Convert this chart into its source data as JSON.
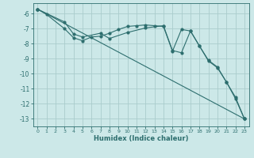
{
  "xlabel": "Humidex (Indice chaleur)",
  "bg_color": "#cce8e8",
  "grid_color": "#aacccc",
  "line_color": "#2d6e6e",
  "xlim": [
    -0.5,
    23.5
  ],
  "ylim": [
    -13.5,
    -5.3
  ],
  "yticks": [
    -13,
    -12,
    -11,
    -10,
    -9,
    -8,
    -7,
    -6
  ],
  "xticks": [
    0,
    1,
    2,
    3,
    4,
    5,
    6,
    7,
    8,
    9,
    10,
    11,
    12,
    13,
    14,
    15,
    16,
    17,
    18,
    19,
    20,
    21,
    22,
    23
  ],
  "line1_x": [
    0,
    1,
    3,
    4,
    5,
    6,
    7,
    8,
    9,
    10,
    11,
    12,
    13,
    14,
    15,
    16,
    17,
    18,
    19,
    20,
    21,
    22,
    23
  ],
  "line1_y": [
    -5.7,
    -6.05,
    -7.0,
    -7.6,
    -7.8,
    -7.55,
    -7.5,
    -7.3,
    -7.05,
    -6.85,
    -6.8,
    -6.75,
    -6.8,
    -6.85,
    -8.5,
    -7.05,
    -7.15,
    -8.15,
    -9.1,
    -9.55,
    -10.55,
    -11.55,
    -13.0
  ],
  "line2_x": [
    0,
    3,
    4,
    5,
    7,
    8,
    10,
    12,
    14,
    15,
    16,
    17,
    18,
    19,
    20,
    21,
    22,
    23
  ],
  "line2_y": [
    -5.7,
    -6.55,
    -7.35,
    -7.55,
    -7.3,
    -7.65,
    -7.25,
    -6.95,
    -6.8,
    -8.45,
    -8.6,
    -7.15,
    -8.15,
    -9.15,
    -9.6,
    -10.55,
    -11.65,
    -13.0
  ],
  "line3_x": [
    0,
    23
  ],
  "line3_y": [
    -5.7,
    -13.0
  ]
}
